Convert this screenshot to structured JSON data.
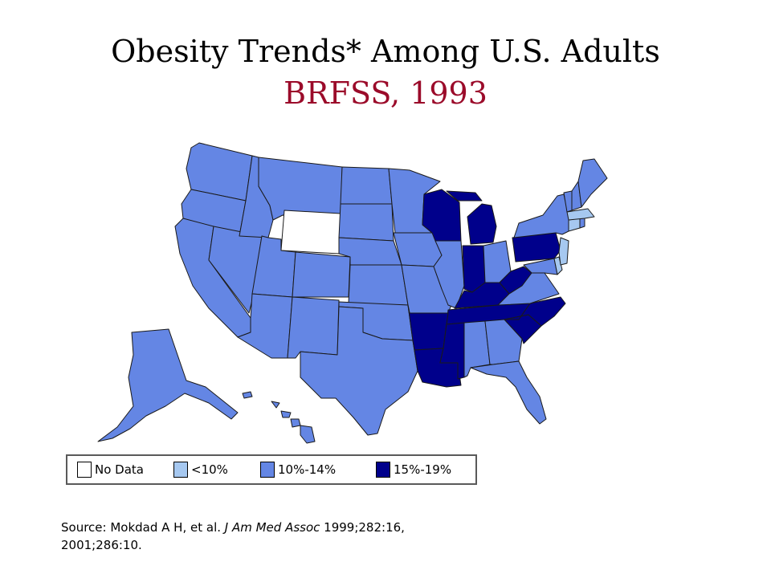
{
  "title": {
    "line1": "Obesity Trends* Among U.S. Adults",
    "line2": "BRFSS, 1993"
  },
  "colors": {
    "no_data": "#ffffff",
    "lt10": "#a6c8f0",
    "p10_14": "#6486e4",
    "p15_19": "#00008b",
    "border": "#1a1a1a",
    "title_accent": "#9b0b2a"
  },
  "legend": [
    {
      "label": "No Data",
      "category": "no_data"
    },
    {
      "label": "<10%",
      "category": "lt10"
    },
    {
      "label": "10%-14%",
      "category": "p10_14"
    },
    {
      "label": "15%-19%",
      "category": "p15_19"
    }
  ],
  "state_categories": {
    "no_data": [
      "WY"
    ],
    "lt10": [
      "MA",
      "NJ",
      "DE",
      "CT"
    ],
    "p15_19": [
      "WI",
      "MI",
      "IN",
      "KY",
      "WV",
      "PA",
      "TN",
      "NC",
      "SC",
      "AR",
      "LA",
      "MS"
    ]
  },
  "source": {
    "prefix": "Source: Mokdad A H, et al. ",
    "journal": "J Am Med Assoc",
    "suffix": " 1999;282:16,",
    "line2": "2001;286:10."
  }
}
